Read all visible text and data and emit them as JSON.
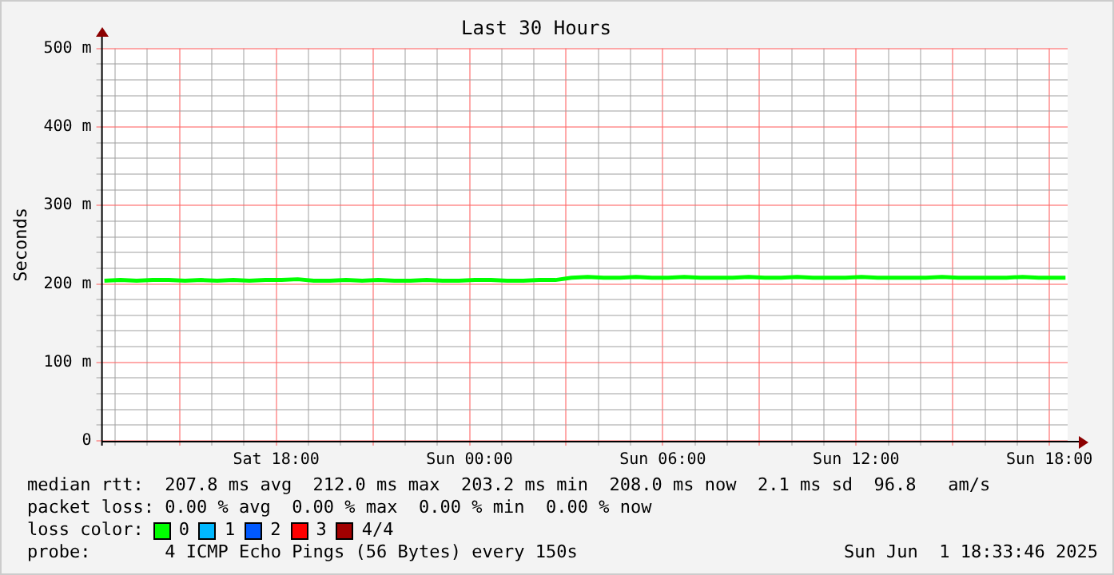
{
  "chart_data": {
    "type": "line",
    "title": "Last 30 Hours",
    "ylabel": "Seconds",
    "legend_title": "loss color:",
    "legend": "bottom",
    "grid": true,
    "marker": "none",
    "line_style": "solid",
    "x": [
      "2025-05-31T12:40",
      "2025-05-31T13:10",
      "2025-05-31T13:40",
      "2025-05-31T14:10",
      "2025-05-31T14:40",
      "2025-05-31T15:10",
      "2025-05-31T15:40",
      "2025-05-31T16:10",
      "2025-05-31T16:40",
      "2025-05-31T17:10",
      "2025-05-31T17:40",
      "2025-05-31T18:10",
      "2025-05-31T18:40",
      "2025-05-31T19:10",
      "2025-05-31T19:40",
      "2025-05-31T20:10",
      "2025-05-31T20:40",
      "2025-05-31T21:10",
      "2025-05-31T21:40",
      "2025-05-31T22:10",
      "2025-05-31T22:40",
      "2025-05-31T23:10",
      "2025-05-31T23:40",
      "2025-06-01T00:10",
      "2025-06-01T00:40",
      "2025-06-01T01:10",
      "2025-06-01T01:40",
      "2025-06-01T02:10",
      "2025-06-01T02:40",
      "2025-06-01T03:10",
      "2025-06-01T03:40",
      "2025-06-01T04:10",
      "2025-06-01T04:40",
      "2025-06-01T05:10",
      "2025-06-01T05:40",
      "2025-06-01T06:10",
      "2025-06-01T06:40",
      "2025-06-01T07:10",
      "2025-06-01T07:40",
      "2025-06-01T08:10",
      "2025-06-01T08:40",
      "2025-06-01T09:10",
      "2025-06-01T09:40",
      "2025-06-01T10:10",
      "2025-06-01T10:40",
      "2025-06-01T11:10",
      "2025-06-01T11:40",
      "2025-06-01T12:10",
      "2025-06-01T12:40",
      "2025-06-01T13:10",
      "2025-06-01T13:40",
      "2025-06-01T14:10",
      "2025-06-01T14:40",
      "2025-06-01T15:10",
      "2025-06-01T15:40",
      "2025-06-01T16:10",
      "2025-06-01T16:40",
      "2025-06-01T17:10",
      "2025-06-01T17:40",
      "2025-06-01T18:10",
      "2025-06-01T18:30"
    ],
    "series": [
      {
        "name": "0",
        "color": "#00ff00",
        "values": [
          204,
          205,
          204,
          205,
          205,
          204,
          205,
          204,
          205,
          204,
          205,
          205,
          206,
          204,
          204,
          205,
          204,
          205,
          204,
          204,
          205,
          204,
          204,
          205,
          205,
          204,
          204,
          205,
          205,
          208,
          209,
          208,
          208,
          209,
          208,
          208,
          209,
          208,
          208,
          208,
          209,
          208,
          208,
          209,
          208,
          208,
          208,
          209,
          208,
          208,
          208,
          208,
          209,
          208,
          208,
          208,
          208,
          209,
          208,
          208,
          208
        ]
      },
      {
        "name": "1",
        "color": "#00b8ff",
        "values": [
          null,
          null,
          null,
          null,
          null,
          null,
          null,
          null,
          null,
          null,
          null,
          null,
          null,
          null,
          null,
          null,
          null,
          null,
          null,
          null,
          null,
          null,
          null,
          null,
          null,
          null,
          null,
          null,
          null,
          null,
          null,
          null,
          null,
          null,
          null,
          null,
          null,
          null,
          null,
          null,
          null,
          null,
          null,
          null,
          null,
          null,
          null,
          null,
          null,
          null,
          null,
          null,
          null,
          null,
          null,
          null,
          null,
          null,
          null,
          null,
          null
        ]
      },
      {
        "name": "2",
        "color": "#0059ff",
        "values": [
          null,
          null,
          null,
          null,
          null,
          null,
          null,
          null,
          null,
          null,
          null,
          null,
          null,
          null,
          null,
          null,
          null,
          null,
          null,
          null,
          null,
          null,
          null,
          null,
          null,
          null,
          null,
          null,
          null,
          null,
          null,
          null,
          null,
          null,
          null,
          null,
          null,
          null,
          null,
          null,
          null,
          null,
          null,
          null,
          null,
          null,
          null,
          null,
          null,
          null,
          null,
          null,
          null,
          null,
          null,
          null,
          null,
          null,
          null,
          null,
          null
        ]
      },
      {
        "name": "3",
        "color": "#ff0000",
        "values": [
          null,
          null,
          null,
          null,
          null,
          null,
          null,
          null,
          null,
          null,
          null,
          null,
          null,
          null,
          null,
          null,
          null,
          null,
          null,
          null,
          null,
          null,
          null,
          null,
          null,
          null,
          null,
          null,
          null,
          null,
          null,
          null,
          null,
          null,
          null,
          null,
          null,
          null,
          null,
          null,
          null,
          null,
          null,
          null,
          null,
          null,
          null,
          null,
          null,
          null,
          null,
          null,
          null,
          null,
          null,
          null,
          null,
          null,
          null,
          null,
          null
        ]
      },
      {
        "name": "4/4",
        "color": "#a10000",
        "values": [
          null,
          null,
          null,
          null,
          null,
          null,
          null,
          null,
          null,
          null,
          null,
          null,
          null,
          null,
          null,
          null,
          null,
          null,
          null,
          null,
          null,
          null,
          null,
          null,
          null,
          null,
          null,
          null,
          null,
          null,
          null,
          null,
          null,
          null,
          null,
          null,
          null,
          null,
          null,
          null,
          null,
          null,
          null,
          null,
          null,
          null,
          null,
          null,
          null,
          null,
          null,
          null,
          null,
          null,
          null,
          null,
          null,
          null,
          null,
          null,
          null
        ]
      }
    ],
    "xlim": [
      "2025-05-31T12:34",
      "2025-06-01T18:34"
    ],
    "xticks": [
      {
        "value": "2025-05-31T13:00",
        "label": null
      },
      {
        "value": "2025-05-31T14:00",
        "label": null
      },
      {
        "value": "2025-05-31T15:00",
        "label": null
      },
      {
        "value": "2025-05-31T16:00",
        "label": null
      },
      {
        "value": "2025-05-31T17:00",
        "label": null
      },
      {
        "value": "2025-05-31T18:00",
        "label": "Sat 18:00"
      },
      {
        "value": "2025-05-31T19:00",
        "label": null
      },
      {
        "value": "2025-05-31T20:00",
        "label": null
      },
      {
        "value": "2025-05-31T21:00",
        "label": null
      },
      {
        "value": "2025-05-31T22:00",
        "label": null
      },
      {
        "value": "2025-05-31T23:00",
        "label": null
      },
      {
        "value": "2025-06-01T00:00",
        "label": "Sun 00:00"
      },
      {
        "value": "2025-06-01T01:00",
        "label": null
      },
      {
        "value": "2025-06-01T02:00",
        "label": null
      },
      {
        "value": "2025-06-01T03:00",
        "label": null
      },
      {
        "value": "2025-06-01T04:00",
        "label": null
      },
      {
        "value": "2025-06-01T05:00",
        "label": null
      },
      {
        "value": "2025-06-01T06:00",
        "label": "Sun 06:00"
      },
      {
        "value": "2025-06-01T07:00",
        "label": null
      },
      {
        "value": "2025-06-01T08:00",
        "label": null
      },
      {
        "value": "2025-06-01T09:00",
        "label": null
      },
      {
        "value": "2025-06-01T10:00",
        "label": null
      },
      {
        "value": "2025-06-01T11:00",
        "label": null
      },
      {
        "value": "2025-06-01T12:00",
        "label": "Sun 12:00"
      },
      {
        "value": "2025-06-01T13:00",
        "label": null
      },
      {
        "value": "2025-06-01T14:00",
        "label": null
      },
      {
        "value": "2025-06-01T15:00",
        "label": null
      },
      {
        "value": "2025-06-01T16:00",
        "label": null
      },
      {
        "value": "2025-06-01T17:00",
        "label": null
      },
      {
        "value": "2025-06-01T18:00",
        "label": "Sun 18:00"
      }
    ],
    "ylim": [
      0,
      500
    ],
    "yticks": [
      0,
      {
        "value": 20,
        "label": null
      },
      {
        "value": 40,
        "label": null
      },
      {
        "value": 60,
        "label": null
      },
      {
        "value": 80,
        "label": null
      },
      {
        "value": 100,
        "label": "100 m"
      },
      {
        "value": 120,
        "label": null
      },
      {
        "value": 140,
        "label": null
      },
      {
        "value": 160,
        "label": null
      },
      {
        "value": 180,
        "label": null
      },
      {
        "value": 200,
        "label": "200 m"
      },
      {
        "value": 220,
        "label": null
      },
      {
        "value": 240,
        "label": null
      },
      {
        "value": 260,
        "label": null
      },
      {
        "value": 280,
        "label": null
      },
      {
        "value": 300,
        "label": "300 m"
      },
      {
        "value": 320,
        "label": null
      },
      {
        "value": 340,
        "label": null
      },
      {
        "value": 360,
        "label": null
      },
      {
        "value": 380,
        "label": null
      },
      {
        "value": 400,
        "label": "400 m"
      },
      {
        "value": 420,
        "label": null
      },
      {
        "value": 440,
        "label": null
      },
      {
        "value": 460,
        "label": null
      },
      {
        "value": 480,
        "label": null
      },
      {
        "value": 500,
        "label": "500 m"
      }
    ],
    "annotations": [
      "median rtt:  207.8 ms avg  212.0 ms max  203.2 ms min  208.0 ms now  2.1 ms sd  96.8   am/s",
      "packet loss: 0.00 % avg  0.00 % max  0.00 % min  0.00 % now",
      "probe:       4 ICMP Echo Pings (56 Bytes) every 150s",
      "Sun Jun  1 18:33:46 2025"
    ]
  }
}
